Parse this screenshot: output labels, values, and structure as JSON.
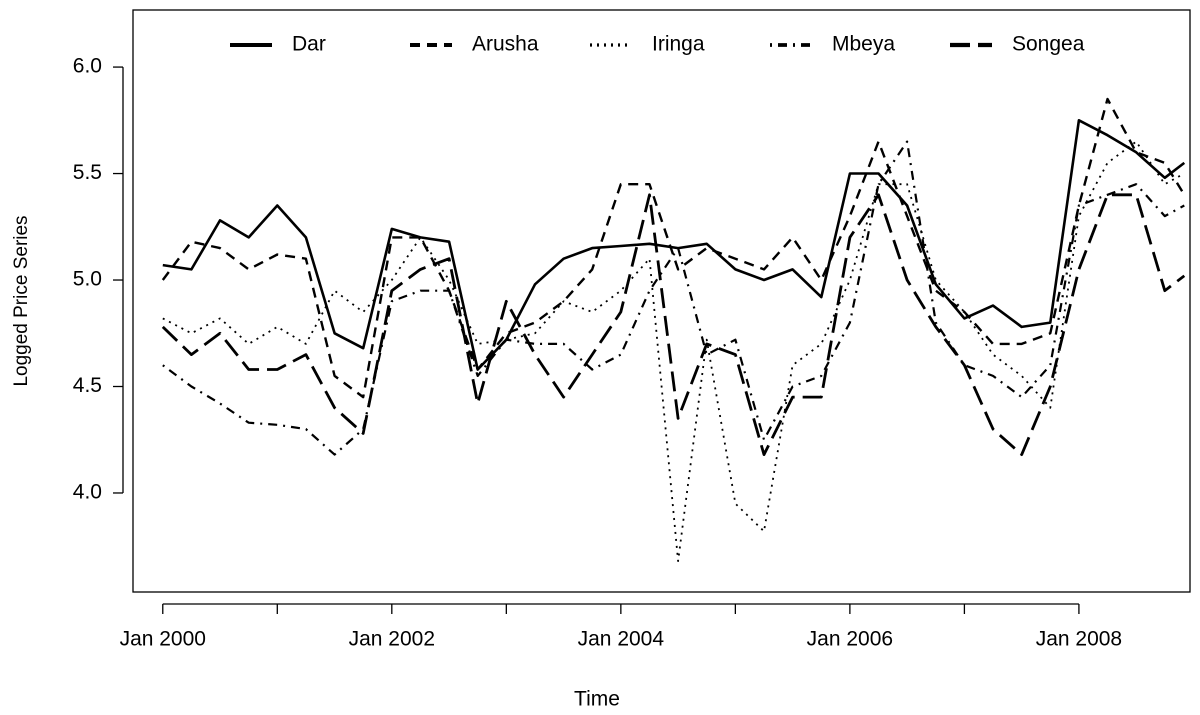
{
  "chart_data": {
    "type": "line",
    "xlabel": "Time",
    "ylabel": "Logged Price Series",
    "x": [
      2000,
      2000.25,
      2000.5,
      2000.75,
      2001,
      2001.25,
      2001.5,
      2001.75,
      2002,
      2002.25,
      2002.5,
      2002.75,
      2003,
      2003.25,
      2003.5,
      2003.75,
      2004,
      2004.25,
      2004.5,
      2004.75,
      2005,
      2005.25,
      2005.5,
      2005.75,
      2006,
      2006.25,
      2006.5,
      2006.75,
      2007,
      2007.25,
      2007.5,
      2007.75,
      2008,
      2008.25,
      2008.5,
      2008.75,
      2008.92
    ],
    "series": [
      {
        "name": "Dar",
        "color": "#000000",
        "linestyle": "solid",
        "values": [
          5.07,
          5.05,
          5.28,
          5.2,
          5.35,
          5.2,
          4.75,
          4.68,
          5.24,
          5.2,
          5.18,
          4.58,
          4.72,
          4.98,
          5.1,
          5.15,
          5.16,
          5.17,
          5.15,
          5.17,
          5.05,
          5.0,
          5.05,
          4.92,
          5.5,
          5.5,
          5.35,
          4.98,
          4.82,
          4.88,
          4.78,
          4.8,
          5.75,
          5.68,
          5.6,
          5.48,
          5.55
        ]
      },
      {
        "name": "Arusha",
        "color": "#000000",
        "linestyle": "dashed",
        "values": [
          5.0,
          5.18,
          5.15,
          5.05,
          5.12,
          5.1,
          4.55,
          4.45,
          5.2,
          5.2,
          4.95,
          4.58,
          4.75,
          4.8,
          4.9,
          5.05,
          5.45,
          5.45,
          5.05,
          5.15,
          5.1,
          5.05,
          5.2,
          5.0,
          5.3,
          5.65,
          5.3,
          4.95,
          4.85,
          4.7,
          4.7,
          4.75,
          5.35,
          5.85,
          5.6,
          5.55,
          5.4
        ]
      },
      {
        "name": "Iringa",
        "color": "#000000",
        "linestyle": "dotted",
        "values": [
          4.82,
          4.75,
          4.82,
          4.7,
          4.78,
          4.7,
          4.95,
          4.85,
          5.0,
          5.2,
          5.0,
          4.7,
          4.72,
          4.75,
          4.9,
          4.85,
          4.95,
          5.1,
          3.68,
          4.72,
          3.95,
          3.82,
          4.6,
          4.7,
          5.0,
          5.45,
          5.45,
          5.0,
          4.85,
          4.65,
          4.55,
          4.4,
          5.3,
          5.55,
          5.65,
          5.45,
          5.5
        ]
      },
      {
        "name": "Mbeya",
        "color": "#000000",
        "linestyle": "dashdot",
        "values": [
          4.6,
          4.5,
          4.42,
          4.33,
          4.32,
          4.3,
          4.18,
          4.3,
          4.9,
          4.95,
          4.95,
          4.55,
          4.72,
          4.7,
          4.7,
          4.58,
          4.65,
          4.95,
          5.15,
          4.65,
          4.72,
          4.25,
          4.5,
          4.55,
          4.8,
          5.45,
          5.65,
          4.8,
          4.6,
          4.55,
          4.45,
          4.6,
          5.35,
          5.4,
          5.45,
          5.3,
          5.35
        ]
      },
      {
        "name": "Songea",
        "color": "#000000",
        "linestyle": "longdash",
        "values": [
          4.78,
          4.65,
          4.75,
          4.58,
          4.58,
          4.65,
          4.4,
          4.28,
          4.95,
          5.05,
          5.1,
          4.42,
          4.9,
          4.65,
          4.45,
          4.65,
          4.85,
          5.4,
          4.35,
          4.7,
          4.65,
          4.18,
          4.45,
          4.45,
          5.2,
          5.4,
          5.0,
          4.78,
          4.6,
          4.3,
          4.18,
          4.5,
          5.05,
          5.4,
          5.4,
          4.95,
          5.02
        ]
      }
    ],
    "xlim": [
      1999.74,
      2008.97
    ],
    "ylim": [
      3.535,
      6.268
    ],
    "xticks": [
      {
        "value": 2000,
        "label": "Jan 2000"
      },
      {
        "value": 2001,
        "label": null
      },
      {
        "value": 2002,
        "label": "Jan 2002"
      },
      {
        "value": 2003,
        "label": null
      },
      {
        "value": 2004,
        "label": "Jan 2004"
      },
      {
        "value": 2005,
        "label": null
      },
      {
        "value": 2006,
        "label": "Jan 2006"
      },
      {
        "value": 2007,
        "label": null
      },
      {
        "value": 2008,
        "label": "Jan 2008"
      }
    ],
    "yticks": [
      {
        "value": 4,
        "label": "4.0"
      },
      4.5,
      {
        "value": 5,
        "label": "5.0"
      },
      5.5,
      {
        "value": 6,
        "label": "6.0"
      }
    ],
    "legend": "top",
    "grid": false
  }
}
